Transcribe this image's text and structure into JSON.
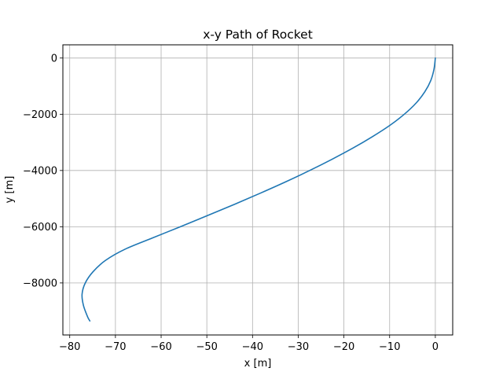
{
  "chart_data": {
    "type": "line",
    "title": "x-y Path of Rocket",
    "xlabel": "x [m]",
    "ylabel": "y [m]",
    "xlim": [
      -81.5,
      3.8
    ],
    "ylim": [
      -9850,
      470
    ],
    "xticks": [
      -80,
      -70,
      -60,
      -50,
      -40,
      -30,
      -20,
      -10,
      0
    ],
    "yticks": [
      0,
      -2000,
      -4000,
      -6000,
      -8000
    ],
    "grid": true,
    "legend": "none",
    "line_color": "#1f77b4",
    "series": [
      {
        "name": "",
        "x": [
          0,
          -0.3,
          -1.0,
          -2.3,
          -4.2,
          -6.8,
          -10.0,
          -13.8,
          -18.0,
          -22.6,
          -27.5,
          -32.7,
          -38.2,
          -43.9,
          -49.8,
          -55.8,
          -61.9,
          -67.9,
          -72.2,
          -74.9,
          -76.6,
          -77.3,
          -77.0,
          -76.1,
          -75.6
        ],
        "y": [
          0,
          -400,
          -800,
          -1200,
          -1600,
          -2000,
          -2400,
          -2800,
          -3200,
          -3600,
          -4000,
          -4400,
          -4800,
          -5200,
          -5600,
          -6000,
          -6400,
          -6800,
          -7200,
          -7600,
          -8000,
          -8400,
          -8800,
          -9200,
          -9350
        ]
      }
    ]
  }
}
